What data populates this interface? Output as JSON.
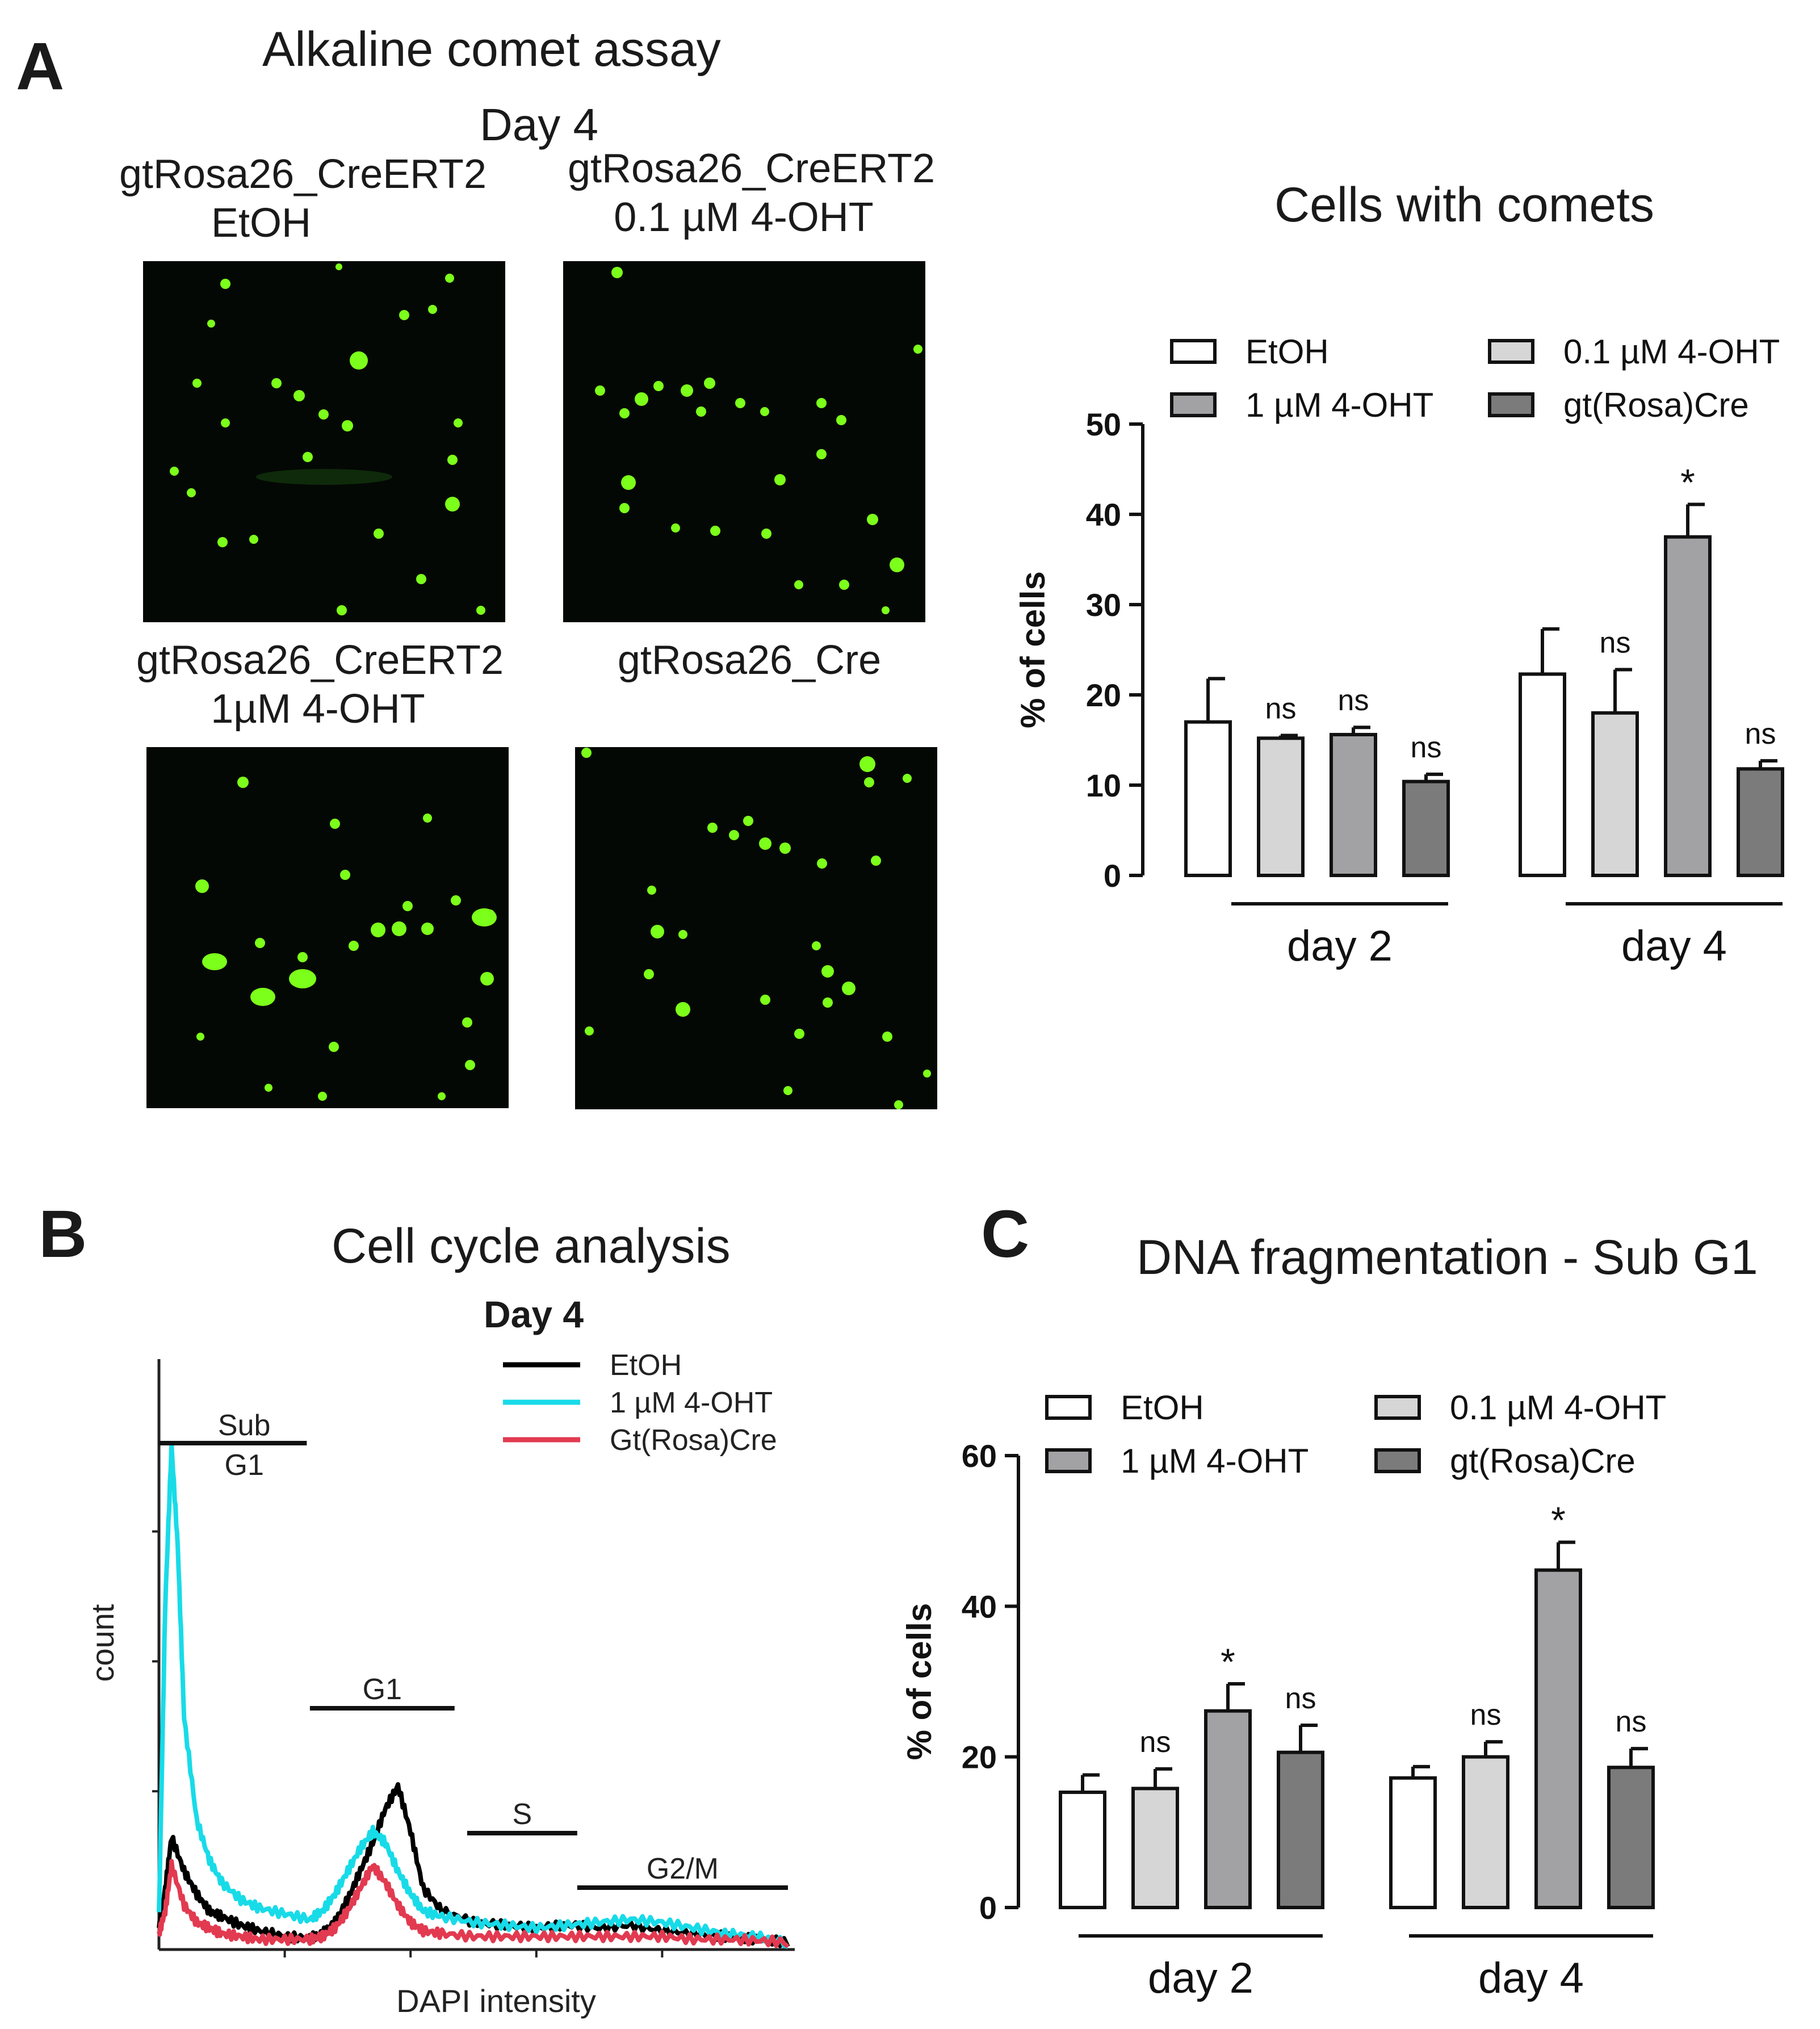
{
  "panel_a": {
    "letter": "A",
    "title": "Alkaline comet assay",
    "day_label": "Day 4",
    "images": [
      {
        "caption_line1": "gtRosa26_CreERT2",
        "caption_line2": "EtOH"
      },
      {
        "caption_line1": "gtRosa26_CreERT2",
        "caption_line2": "0.1 µM 4-OHT"
      },
      {
        "caption_line1": "gtRosa26_CreERT2",
        "caption_line2": "1µM 4-OHT"
      },
      {
        "caption_line1": "gtRosa26_Cre",
        "caption_line2": ""
      }
    ],
    "image_color": "#7cff1a"
  },
  "panel_b": {
    "letter": "B",
    "title": "Cell cycle analysis",
    "day_label": "Day 4"
  },
  "panel_c": {
    "letter": "C"
  },
  "legend": {
    "etoh": "EtOH",
    "low": "0.1 µM 4-OHT",
    "high": "1 µM 4-OHT",
    "cre": "gt(Rosa)Cre"
  },
  "chart_data": [
    {
      "type": "bar",
      "title": "Cells with comets",
      "ylabel": "% of cells",
      "xlabel": "",
      "ylim": [
        0,
        50
      ],
      "yticks": [
        0,
        10,
        20,
        30,
        40,
        50
      ],
      "categories": [
        "day 2",
        "day 4"
      ],
      "series": [
        {
          "name": "EtOH",
          "color": "#ffffff",
          "values": [
            17,
            22.3
          ],
          "errors": [
            4.8,
            5.0
          ],
          "annotations": [
            "",
            ""
          ]
        },
        {
          "name": "0.1 µM 4-OHT",
          "color": "#d6d6d6",
          "values": [
            15.2,
            18
          ],
          "errors": [
            0.3,
            4.8
          ],
          "annotations": [
            "ns",
            "ns"
          ]
        },
        {
          "name": "1 µM 4-OHT",
          "color": "#a2a2a4",
          "values": [
            15.6,
            37.5
          ],
          "errors": [
            0.8,
            3.6
          ],
          "annotations": [
            "ns",
            "*"
          ]
        },
        {
          "name": "gt(Rosa)Cre",
          "color": "#7b7b7b",
          "values": [
            10.4,
            11.8
          ],
          "errors": [
            0.8,
            0.9
          ],
          "annotations": [
            "ns",
            "ns"
          ]
        }
      ],
      "legend_position": "top"
    },
    {
      "type": "line",
      "title": "Day 4",
      "xlabel": "DAPI intensity",
      "ylabel": "count",
      "x_range": [
        0,
        1000
      ],
      "y_range": [
        0,
        100
      ],
      "gates": [
        {
          "label": "Sub G1",
          "from": 0,
          "to": 235
        },
        {
          "label": "G1",
          "from": 240,
          "to": 470
        },
        {
          "label": "S",
          "from": 490,
          "to": 665
        },
        {
          "label": "G2/M",
          "from": 665,
          "to": 1000
        }
      ],
      "series": [
        {
          "name": "EtOH",
          "color": "#000000",
          "x": [
            0,
            10,
            20,
            40,
            60,
            80,
            100,
            130,
            160,
            200,
            240,
            260,
            280,
            300,
            320,
            340,
            360,
            380,
            400,
            420,
            450,
            500,
            550,
            600,
            650,
            700,
            750,
            800,
            850,
            900,
            950,
            1000
          ],
          "y": [
            3,
            10,
            19,
            13,
            9,
            6,
            5,
            3.5,
            2.5,
            1.5,
            1.2,
            2,
            4,
            8,
            13,
            18,
            24,
            28,
            20,
            10,
            6,
            4,
            3.5,
            3,
            3.5,
            3,
            3.5,
            2.5,
            2,
            1.5,
            1,
            0.5
          ]
        },
        {
          "name": "1 µM 4-OHT",
          "color": "#18dbe8",
          "x": [
            0,
            10,
            20,
            30,
            40,
            60,
            80,
            100,
            130,
            160,
            200,
            240,
            260,
            280,
            300,
            320,
            340,
            360,
            380,
            400,
            420,
            450,
            500,
            550,
            600,
            650,
            700,
            750,
            800,
            850,
            900,
            950,
            1000
          ],
          "y": [
            5,
            60,
            88,
            70,
            40,
            22,
            15,
            11,
            8,
            6.5,
            5.5,
            4.5,
            6,
            9,
            13,
            17,
            20,
            18,
            13,
            9,
            6,
            5,
            4,
            3.5,
            3,
            3.5,
            4,
            4.5,
            4,
            3,
            2,
            1.5,
            0.5
          ]
        },
        {
          "name": "Gt(Rosa)Cre",
          "color": "#e23a50",
          "x": [
            0,
            10,
            20,
            40,
            60,
            80,
            100,
            130,
            160,
            200,
            240,
            260,
            280,
            300,
            320,
            340,
            360,
            380,
            400,
            420,
            450,
            500,
            550,
            600,
            650,
            700,
            750,
            800,
            850,
            900,
            950,
            1000
          ],
          "y": [
            2,
            6,
            14,
            7,
            4,
            3,
            2,
            1.5,
            1,
            1,
            1,
            1.5,
            3,
            6,
            10,
            14,
            11,
            7,
            4,
            2.5,
            2,
            1.5,
            1.5,
            1.5,
            1.5,
            1.5,
            1.5,
            1.5,
            1,
            1,
            0.8,
            0.5
          ]
        }
      ],
      "legend_position": "top-right"
    },
    {
      "type": "bar",
      "title": "DNA fragmentation - Sub G1",
      "ylabel": "% of cells",
      "xlabel": "",
      "ylim": [
        0,
        60
      ],
      "yticks": [
        0,
        20,
        40,
        60
      ],
      "categories": [
        "day 2",
        "day 4"
      ],
      "series": [
        {
          "name": "EtOH",
          "color": "#ffffff",
          "values": [
            15.3,
            17.2
          ],
          "errors": [
            2.3,
            1.5
          ],
          "annotations": [
            "",
            ""
          ]
        },
        {
          "name": "0.1 µM 4-OHT",
          "color": "#d6d6d6",
          "values": [
            15.8,
            20
          ],
          "errors": [
            2.6,
            2.0
          ],
          "annotations": [
            "ns",
            "ns"
          ]
        },
        {
          "name": "1 µM 4-OHT",
          "color": "#a2a2a4",
          "values": [
            26.1,
            44.8
          ],
          "errors": [
            3.6,
            3.7
          ],
          "annotations": [
            "*",
            "*"
          ]
        },
        {
          "name": "gt(Rosa)Cre",
          "color": "#7b7b7b",
          "values": [
            20.6,
            18.6
          ],
          "errors": [
            3.6,
            2.5
          ],
          "annotations": [
            "ns",
            "ns"
          ]
        }
      ],
      "legend_position": "top"
    }
  ]
}
